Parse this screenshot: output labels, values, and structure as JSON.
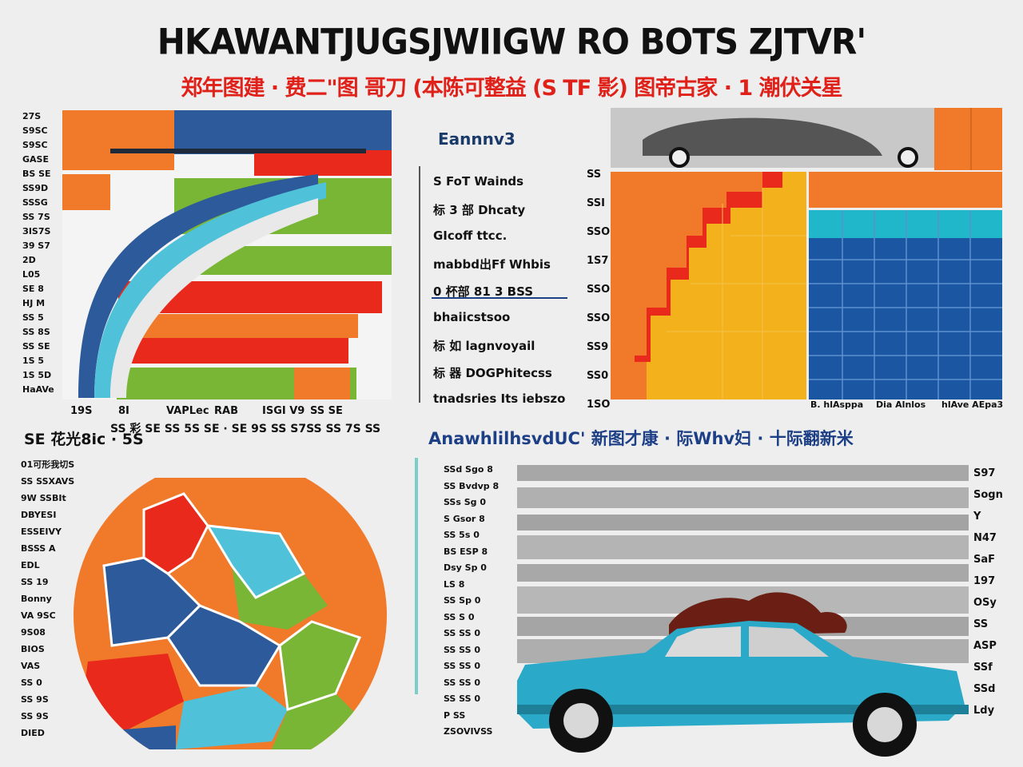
{
  "header": {
    "title": "HKAWANTJUGSJWIIGW RO BOTS ZJTVR'",
    "subtitle": "郑年图建 · 费二\"图 哥刀 (本陈可整益 (S TF 影) 图帝古家 · 1 潮伏关星"
  },
  "colors": {
    "orange": "#f07a2a",
    "red": "#e8291c",
    "green": "#7ab636",
    "navy": "#2d5a9a",
    "teal": "#4fc1d9",
    "yellow": "#f3b21b",
    "blue_cell": "#1b56a3",
    "car": "#2aa9c8",
    "grey": "#a9a9a9"
  },
  "panel_top_left": {
    "y_labels": [
      "27S",
      "S9SC",
      "S9SC",
      "GASE",
      "BS SE",
      "SS9D",
      "SSSG",
      "SS 7S",
      "ЗIS7S",
      "З9 S7",
      "2D",
      "L05",
      "SE 8",
      "HJ M",
      "SS 5",
      "SS 8S",
      "SS SE",
      "1S 5",
      "1S 5D",
      "HaAVe"
    ],
    "x_labels": [
      "19S",
      "8I",
      "VAPLec",
      "RAB",
      "ISGI V9",
      "SS SE"
    ],
    "bottom_row": "SS 彩 SE SS 5S SE · SE 9S SS S7SS SS 7S SS",
    "bottom_left": "SS"
  },
  "legend_panel": {
    "title": "Eannnv3",
    "items": [
      "S FoT Wainds",
      "标 3 部 Dhcaty",
      "GIcoff ttcc.",
      "mabbd出Ff Whbis",
      "0 杯部 81 3 BSS",
      "bhaiicstsoo",
      "标 如 lagnvoyail",
      "标 器 DOGPhitecss",
      "tnadsries Its iebszo"
    ],
    "right_values": [
      "SS",
      "SSI",
      "SSO",
      "1S7",
      "SSO",
      "SSO",
      "SS9",
      "SS0",
      "1SO"
    ]
  },
  "panel_top_right": {
    "x_labels": [
      "B. hlAsppa",
      "Dia Alnlos",
      "hlAve AEpa3"
    ]
  },
  "mid_captions": {
    "left": "SE 花光8ic · 5S",
    "right": "AnawhlilhsvdUC' 新图才康 · 际Whv妇 · 十际翻新米"
  },
  "panel_bottom_left": {
    "labels": [
      "01可形我切S",
      "SS SSXAVS",
      "9W SSBIt",
      "DBYESI",
      "ESSEIVY",
      "BSSS A",
      "EDL",
      "SS 19",
      "Bonny",
      "VA 9SC",
      "9S08",
      "BIOS",
      "VAS",
      "SS 0",
      "SS 9S",
      "SS 9S",
      "DIED"
    ]
  },
  "panel_bottom_right": {
    "left_labels": [
      "SSd Sgo 8",
      "SS Bvdvp 8",
      "SSs Sg 0",
      "S Gsor 8",
      "SS 5s 0",
      "BS ESP 8",
      "Dsy Sp 0",
      "LS 8",
      "SS Sp 0",
      "SS S 0",
      "SS SS 0",
      "SS SS 0",
      "SS SS 0",
      "SS SS 0",
      "SS SS 0",
      "P SS",
      "ZSOVIVSS"
    ],
    "right_labels": [
      "S97",
      "Sogn",
      "Y",
      "N47",
      "SaF",
      "197",
      "OSy",
      "SS",
      "ASP",
      "SSf",
      "SSd",
      "Ldy"
    ]
  }
}
